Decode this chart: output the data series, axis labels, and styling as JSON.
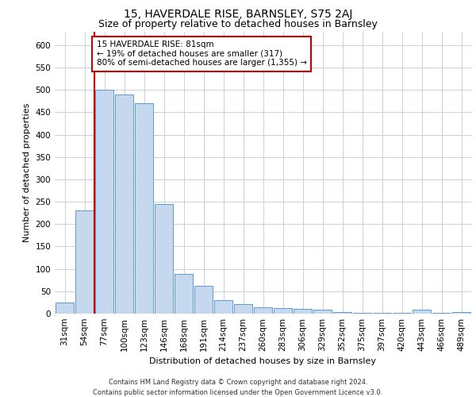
{
  "title1": "15, HAVERDALE RISE, BARNSLEY, S75 2AJ",
  "title2": "Size of property relative to detached houses in Barnsley",
  "xlabel": "Distribution of detached houses by size in Barnsley",
  "ylabel": "Number of detached properties",
  "categories": [
    "31sqm",
    "54sqm",
    "77sqm",
    "100sqm",
    "123sqm",
    "146sqm",
    "168sqm",
    "191sqm",
    "214sqm",
    "237sqm",
    "260sqm",
    "283sqm",
    "306sqm",
    "329sqm",
    "352sqm",
    "375sqm",
    "397sqm",
    "420sqm",
    "443sqm",
    "466sqm",
    "489sqm"
  ],
  "values": [
    25,
    230,
    500,
    490,
    470,
    245,
    88,
    63,
    30,
    22,
    14,
    13,
    10,
    8,
    4,
    2,
    1,
    1,
    8,
    1,
    4
  ],
  "bar_color": "#c5d8ed",
  "bar_edge_color": "#5b9bd5",
  "vline_x_index": 2,
  "vline_color": "#cc0000",
  "annotation_text": "15 HAVERDALE RISE: 81sqm\n← 19% of detached houses are smaller (317)\n80% of semi-detached houses are larger (1,355) →",
  "annotation_box_color": "#ffffff",
  "annotation_box_edge_color": "#cc0000",
  "ylim": [
    0,
    630
  ],
  "yticks": [
    0,
    50,
    100,
    150,
    200,
    250,
    300,
    350,
    400,
    450,
    500,
    550,
    600
  ],
  "footer_line1": "Contains HM Land Registry data © Crown copyright and database right 2024.",
  "footer_line2": "Contains public sector information licensed under the Open Government Licence v3.0.",
  "bg_color": "#ffffff",
  "grid_color": "#c8d0dc",
  "title1_fontsize": 10,
  "title2_fontsize": 9,
  "axis_label_fontsize": 8,
  "tick_fontsize": 7.5,
  "footer_fontsize": 6,
  "annotation_fontsize": 7.5
}
